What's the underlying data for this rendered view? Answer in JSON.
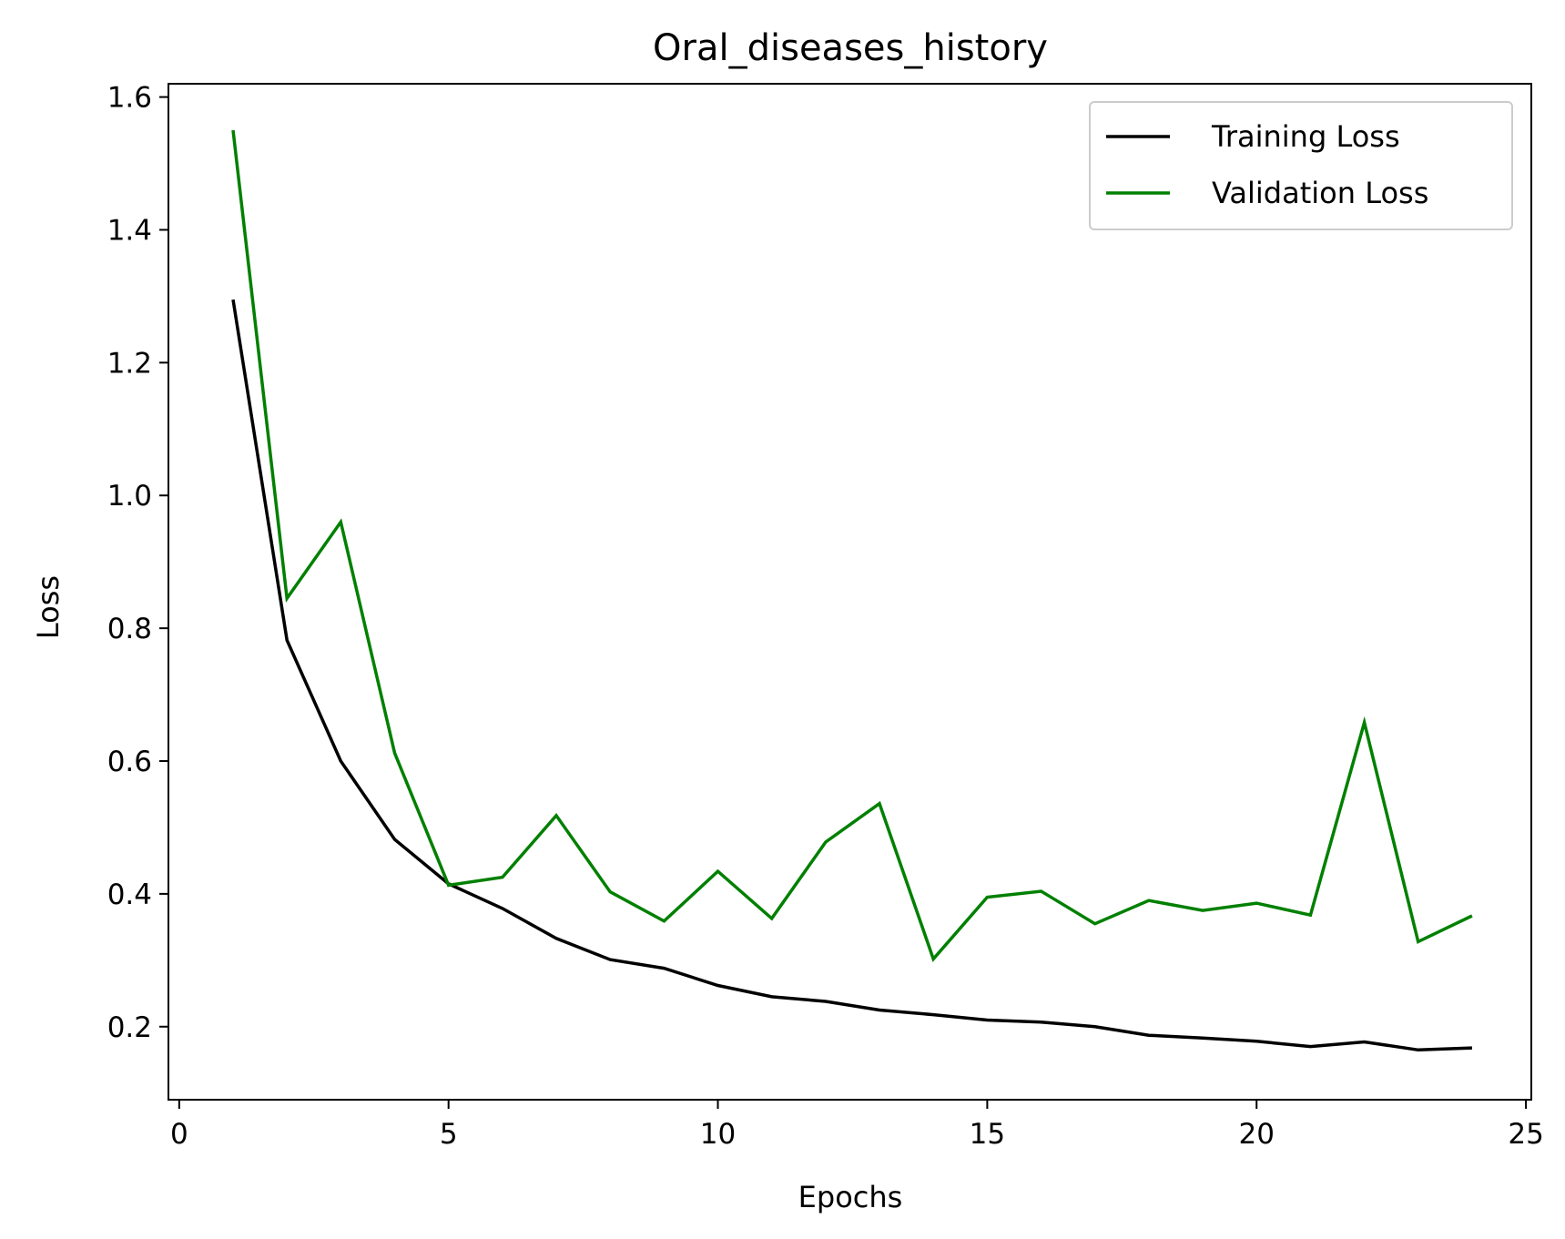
{
  "chart_data": {
    "type": "line",
    "title": "Oral_diseases_history",
    "xlabel": "Epochs",
    "ylabel": "Loss",
    "xlim": [
      -0.2,
      25.1
    ],
    "ylim": [
      0.09,
      1.62
    ],
    "xticks": [
      0,
      5,
      10,
      15,
      20,
      25
    ],
    "yticks": [
      0.2,
      0.4,
      0.6,
      0.8,
      1.0,
      1.2,
      1.4,
      1.6
    ],
    "xtick_labels": [
      "0",
      "5",
      "10",
      "15",
      "20",
      "25"
    ],
    "ytick_labels": [
      "0.2",
      "0.4",
      "0.6",
      "0.8",
      "1.0",
      "1.2",
      "1.4",
      "1.6"
    ],
    "grid": false,
    "legend_position": "top-right",
    "x": [
      1,
      2,
      3,
      4,
      5,
      6,
      7,
      8,
      9,
      10,
      11,
      12,
      13,
      14,
      15,
      16,
      17,
      18,
      19,
      20,
      21,
      22,
      23,
      24
    ],
    "series": [
      {
        "name": "Training Loss",
        "color": "#000000",
        "values": [
          1.295,
          0.782,
          0.6,
          0.482,
          0.415,
          0.378,
          0.333,
          0.301,
          0.288,
          0.262,
          0.245,
          0.238,
          0.225,
          0.218,
          0.21,
          0.207,
          0.2,
          0.187,
          0.183,
          0.178,
          0.17,
          0.177,
          0.165,
          0.168
        ]
      },
      {
        "name": "Validation Loss",
        "color": "#008000",
        "values": [
          1.55,
          0.845,
          0.96,
          0.612,
          0.413,
          0.425,
          0.518,
          0.403,
          0.359,
          0.434,
          0.363,
          0.478,
          0.536,
          0.302,
          0.395,
          0.404,
          0.355,
          0.39,
          0.375,
          0.386,
          0.368,
          0.658,
          0.328,
          0.367
        ]
      }
    ]
  }
}
